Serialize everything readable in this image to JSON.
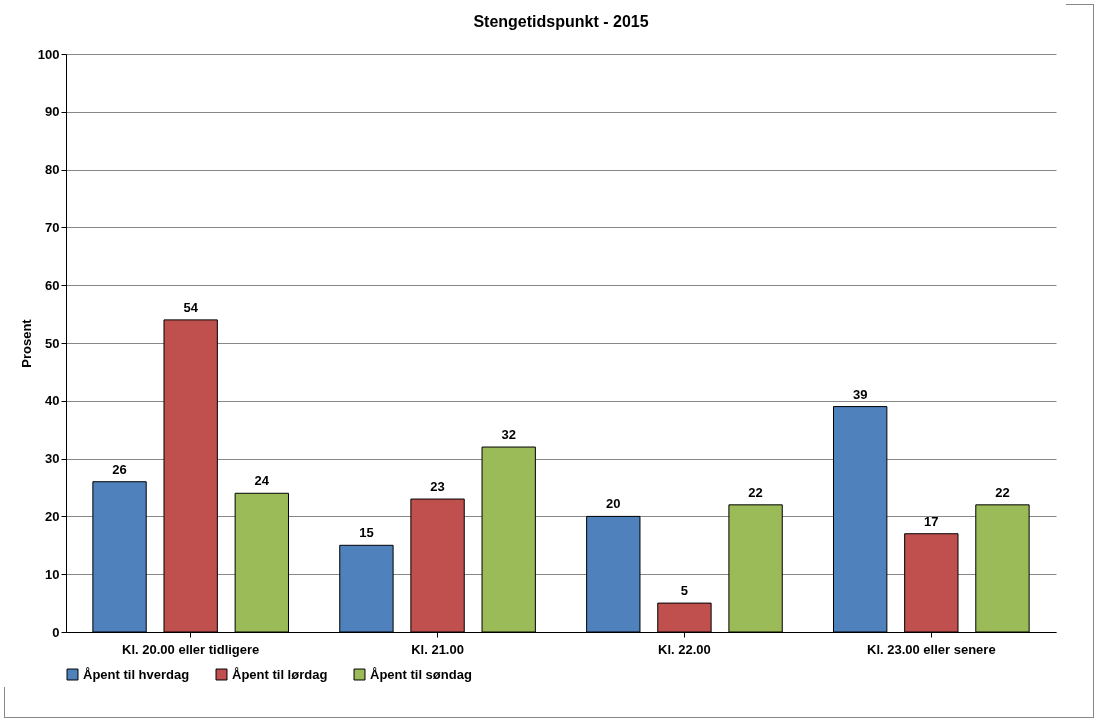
{
  "chart_data": {
    "type": "bar",
    "title": "Stengetidspunkt - 2015",
    "ylabel": "Prosent",
    "categories": [
      "Kl. 20.00 eller tidligere",
      "Kl. 21.00",
      "Kl. 22.00",
      "Kl. 23.00 eller senere"
    ],
    "series": [
      {
        "name": "Åpent til hverdag",
        "color": "#4f81bd",
        "values": [
          26,
          15,
          20,
          39
        ]
      },
      {
        "name": "Åpent til lørdag",
        "color": "#c0504d",
        "values": [
          54,
          23,
          5,
          17
        ]
      },
      {
        "name": "Åpent til søndag",
        "color": "#9bbb59",
        "values": [
          24,
          32,
          22,
          22
        ]
      }
    ],
    "ylim": [
      0,
      100
    ],
    "yticks": [
      0,
      10,
      20,
      30,
      40,
      50,
      60,
      70,
      80,
      90,
      100
    ],
    "grid": "y",
    "legend": "bottom",
    "data_labels": true
  }
}
